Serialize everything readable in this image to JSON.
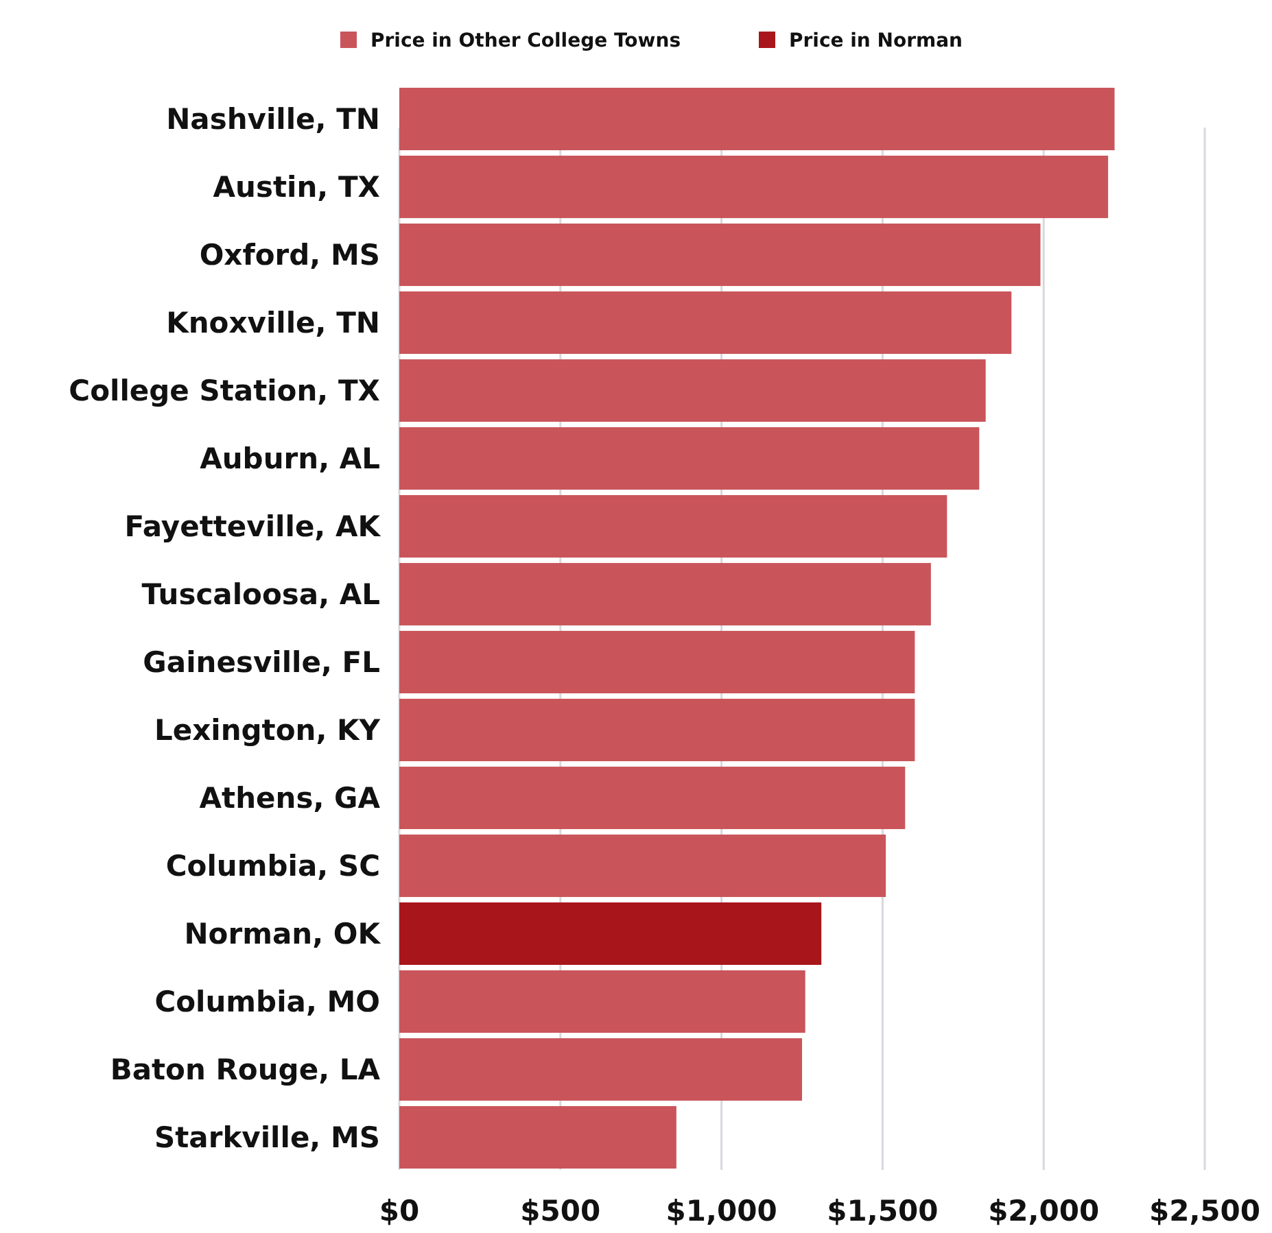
{
  "chart_data": {
    "type": "bar",
    "orientation": "horizontal",
    "stacked": true,
    "categories": [
      "Nashville, TN",
      "Austin, TX",
      "Oxford, MS",
      "Knoxville, TN",
      "College Station, TX",
      "Auburn, AL",
      "Fayetteville, AK",
      "Tuscaloosa, AL",
      "Gainesville, FL",
      "Lexington, KY",
      "Athens, GA",
      "Columbia, SC",
      "Norman, OK",
      "Columbia, MO",
      "Baton Rouge, LA",
      "Starkville, MS"
    ],
    "series": [
      {
        "name": "Price in Other College Towns",
        "color": "#c9555a",
        "values": [
          2220,
          2200,
          1990,
          1900,
          1820,
          1800,
          1700,
          1650,
          1600,
          1600,
          1570,
          1510,
          null,
          1260,
          1250,
          860
        ]
      },
      {
        "name": "Price in Norman",
        "color": "#a8161b",
        "values": [
          null,
          null,
          null,
          null,
          null,
          null,
          null,
          null,
          null,
          null,
          null,
          null,
          1310,
          null,
          null,
          null
        ]
      }
    ],
    "xlim": [
      0,
      2500
    ],
    "xticks": [
      {
        "value": 0,
        "label": "$0"
      },
      {
        "value": 500,
        "label": "$500"
      },
      {
        "value": 1000,
        "label": "$1,000"
      },
      {
        "value": 1500,
        "label": "$1,500"
      },
      {
        "value": 2000,
        "label": "$2,000"
      },
      {
        "value": 2500,
        "label": "$2,500"
      }
    ],
    "grid": "x",
    "legend": "top"
  }
}
